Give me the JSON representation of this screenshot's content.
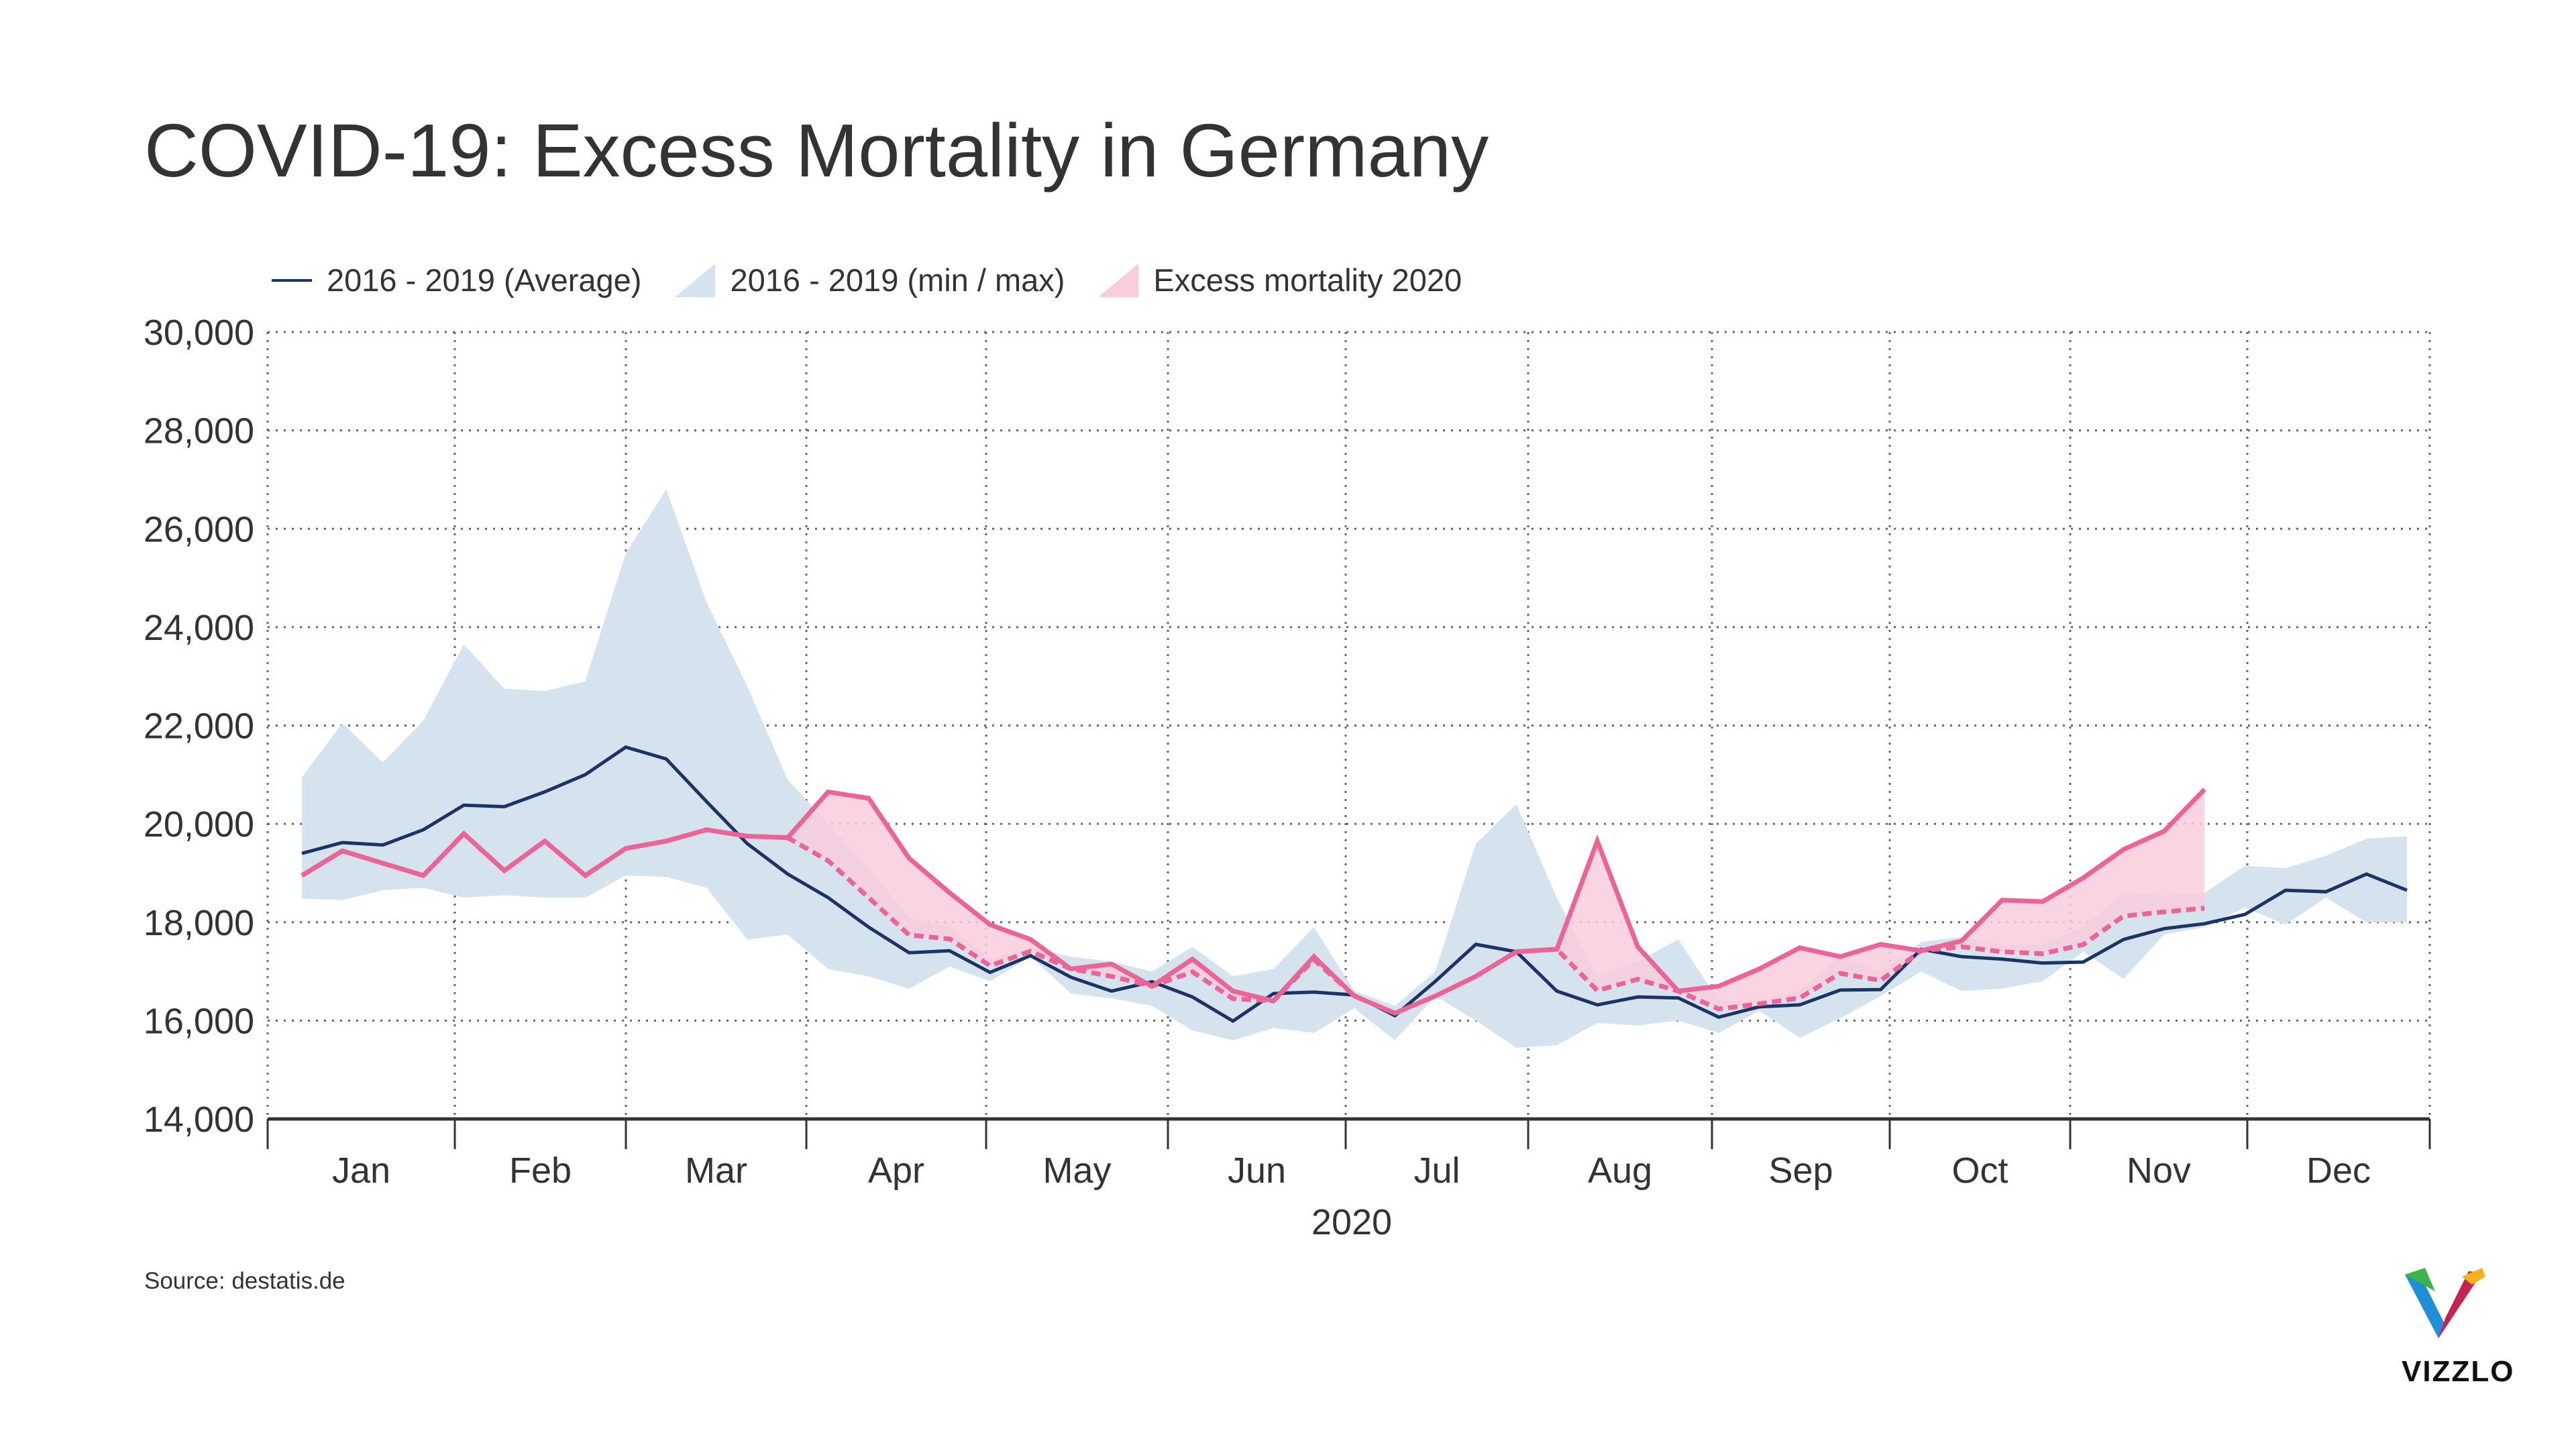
{
  "title": "COVID-19: Excess Mortality in Germany",
  "source": "Source: destatis.de",
  "logo": "VIZZLO",
  "colors": {
    "average": "#1b3466",
    "band": "#d5e3ee",
    "excess_line": "#ec6497",
    "excess_fill": "#f8ccdc"
  },
  "chart_data": {
    "type": "line",
    "title": "COVID-19: Excess Mortality in Germany",
    "xlabel": "2020",
    "ylabel": "",
    "ylim": [
      14000,
      30000
    ],
    "yticks": [
      "14,000",
      "16,000",
      "18,000",
      "20,000",
      "22,000",
      "24,000",
      "26,000",
      "28,000",
      "30,000"
    ],
    "ytick_values": [
      14000,
      16000,
      18000,
      20000,
      22000,
      24000,
      26000,
      28000,
      30000
    ],
    "xticks": [
      "Jan",
      "Feb",
      "Mar",
      "Apr",
      "May",
      "Jun",
      "Jul",
      "Aug",
      "Sep",
      "Oct",
      "Nov",
      "Dec"
    ],
    "grid": true,
    "legend_position": "top-left",
    "legend": [
      "2016 - 2019 (Average)",
      "2016 - 2019 (min / max)",
      "Excess mortality 2020"
    ],
    "x_unit": "calendar week",
    "series": [
      {
        "name": "2016 - 2019 (Average)",
        "type": "line",
        "values": [
          19400,
          19620,
          19570,
          19880,
          20380,
          20350,
          20650,
          21000,
          21560,
          21320,
          20450,
          19600,
          18980,
          18500,
          17900,
          17380,
          17420,
          16980,
          17320,
          16880,
          16600,
          16790,
          16480,
          15990,
          16550,
          16580,
          16520,
          16100,
          16800,
          17550,
          17400,
          16600,
          16320,
          16480,
          16460,
          16070,
          16280,
          16320,
          16620,
          16630,
          17450,
          17300,
          17250,
          17170,
          17190,
          17650,
          17870,
          17970,
          18160,
          18650,
          18620,
          18980,
          18650
        ]
      },
      {
        "name": "2016 - 2019 (min / max)",
        "type": "band",
        "min": [
          18480,
          18450,
          18650,
          18700,
          18500,
          18550,
          18500,
          18500,
          18950,
          18920,
          18700,
          17650,
          17750,
          17050,
          16900,
          16650,
          17100,
          16800,
          17300,
          16550,
          16450,
          16300,
          15800,
          15600,
          15850,
          15750,
          16250,
          15600,
          16500,
          16000,
          15450,
          15500,
          15950,
          15900,
          16000,
          15750,
          16200,
          15650,
          16050,
          16500,
          17000,
          16600,
          16650,
          16800,
          17400,
          16850,
          17750,
          17900,
          18300,
          17950,
          18500,
          18000,
          18000
        ],
        "max": [
          20950,
          22050,
          21250,
          22100,
          23650,
          22750,
          22700,
          22900,
          25500,
          26800,
          24500,
          22800,
          20900,
          20000,
          19100,
          18100,
          17900,
          17250,
          17500,
          17300,
          17200,
          17000,
          17500,
          16900,
          17050,
          17900,
          16600,
          16300,
          17000,
          19600,
          20400,
          18500,
          16900,
          17200,
          17650,
          16400,
          16400,
          16600,
          17300,
          17000,
          17600,
          17700,
          17550,
          17550,
          17900,
          18600,
          18550,
          18600,
          19150,
          19100,
          19350,
          19700,
          19750
        ]
      },
      {
        "name": "Excess mortality 2020",
        "type": "line",
        "values": [
          18950,
          19450,
          19200,
          18950,
          19800,
          19050,
          19650,
          18950,
          19500,
          19650,
          19880,
          19750,
          19720,
          20650,
          20520,
          19300,
          18600,
          17950,
          17650,
          17050,
          17150,
          16700,
          17250,
          16600,
          16400,
          17300,
          16500,
          16150,
          16500,
          16900,
          17400,
          17450,
          19650,
          17500,
          16600,
          16700,
          17050,
          17480,
          17300,
          17550,
          17420,
          17620,
          18450,
          18420,
          18900,
          19480,
          19850,
          20700
        ]
      }
    ]
  }
}
